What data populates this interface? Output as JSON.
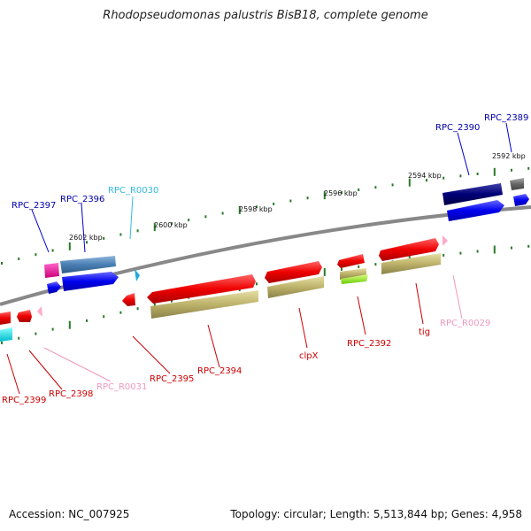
{
  "title": "Rhodopseudomonas palustris BisB18, complete genome",
  "footer": {
    "accession": "Accession: NC_007925",
    "topology": "Topology: circular; Length: 5,513,844 bp; Genes: 4,958"
  },
  "colors": {
    "backbone": "#888888",
    "tick": "#2a7a2a",
    "label_blue": "#0000aa",
    "label_cyan": "#33bbdd",
    "label_red": "#cc0000",
    "label_pink": "#ee99bb",
    "leader_blue": "#0000cc",
    "leader_red": "#cc0000",
    "leader_pink": "#ee99bb",
    "leader_cyan": "#33bbdd"
  },
  "scale_labels": [
    "2602 kbp",
    "2600 kbp",
    "2598 kbp",
    "2596 kbp",
    "2594 kbp",
    "2592 kbp"
  ],
  "gene_labels": [
    {
      "id": "RPC_2389",
      "text": "RPC_2389",
      "color": "label_blue"
    },
    {
      "id": "RPC_2390",
      "text": "RPC_2390",
      "color": "label_blue"
    },
    {
      "id": "RPC_R0030",
      "text": "RPC_R0030",
      "color": "label_cyan"
    },
    {
      "id": "RPC_2396",
      "text": "RPC_2396",
      "color": "label_blue"
    },
    {
      "id": "RPC_2397",
      "text": "RPC_2397",
      "color": "label_blue"
    },
    {
      "id": "RPC_R0029",
      "text": "RPC_R0029",
      "color": "label_pink"
    },
    {
      "id": "tig",
      "text": "tig",
      "color": "label_red"
    },
    {
      "id": "RPC_2392",
      "text": "RPC_2392",
      "color": "label_red"
    },
    {
      "id": "clpX",
      "text": "clpX",
      "color": "label_red"
    },
    {
      "id": "RPC_2394",
      "text": "RPC_2394",
      "color": "label_red"
    },
    {
      "id": "RPC_2395",
      "text": "RPC_2395",
      "color": "label_red"
    },
    {
      "id": "RPC_R0031",
      "text": "RPC_R0031",
      "color": "label_pink"
    },
    {
      "id": "RPC_2398",
      "text": "RPC_2398",
      "color": "label_red"
    },
    {
      "id": "RPC_2399",
      "text": "RPC_2399",
      "color": "label_red"
    }
  ]
}
